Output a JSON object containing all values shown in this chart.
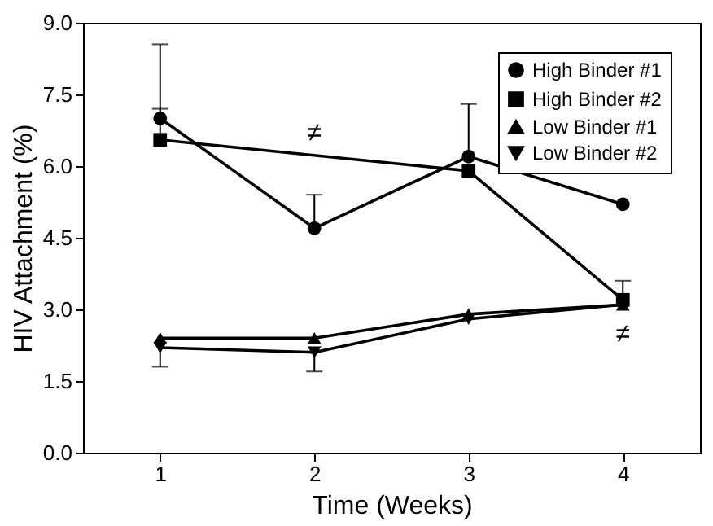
{
  "chart_data": {
    "type": "line",
    "xlabel": "Time (Weeks)",
    "ylabel": "HIV Attachment (%)",
    "x": [
      1,
      2,
      3,
      4
    ],
    "xlim": [
      0.5,
      4.5
    ],
    "xticks": [
      1,
      2,
      3,
      4
    ],
    "ylim": [
      0,
      9
    ],
    "yticks": [
      {
        "value": 0,
        "label": "0.0"
      },
      {
        "value": 1.5,
        "label": "1.5"
      },
      {
        "value": 3,
        "label": "3.0"
      },
      {
        "value": 4.5,
        "label": "4.5"
      },
      {
        "value": 6,
        "label": "6.0"
      },
      {
        "value": 7.5,
        "label": "7.5"
      },
      {
        "value": 9,
        "label": "9.0"
      }
    ],
    "series": [
      {
        "name": "High Binder #1",
        "color": "#000000",
        "marker": "circle",
        "values": [
          7.0,
          4.7,
          6.2,
          5.2
        ],
        "errors": [
          [
            7.0,
            8.55
          ],
          [
            4.7,
            5.4
          ],
          [
            6.2,
            7.3
          ],
          null
        ]
      },
      {
        "name": "High Binder #2",
        "color": "#000000",
        "marker": "square",
        "x": [
          1,
          3,
          4
        ],
        "values": [
          6.55,
          5.9,
          3.2
        ],
        "errors": [
          [
            6.55,
            7.2
          ],
          null,
          [
            3.2,
            3.6
          ]
        ]
      },
      {
        "name": "Low Binder #1",
        "color": "#000000",
        "marker": "triangle",
        "values": [
          2.4,
          2.4,
          2.9,
          3.1
        ]
      },
      {
        "name": "Low Binder #2",
        "color": "#000000",
        "marker": "triangle-down",
        "values": [
          2.2,
          2.1,
          2.8,
          3.1
        ],
        "errors": [
          [
            1.8,
            2.2
          ],
          [
            1.7,
            2.1
          ],
          null,
          null
        ]
      }
    ],
    "annotations": [
      {
        "text": "≠",
        "x": 2,
        "y": 5.4
      },
      {
        "text": "≠",
        "x": 4,
        "y": 3.1
      }
    ],
    "legend": "top right",
    "grid": false,
    "line_style": "solid"
  }
}
